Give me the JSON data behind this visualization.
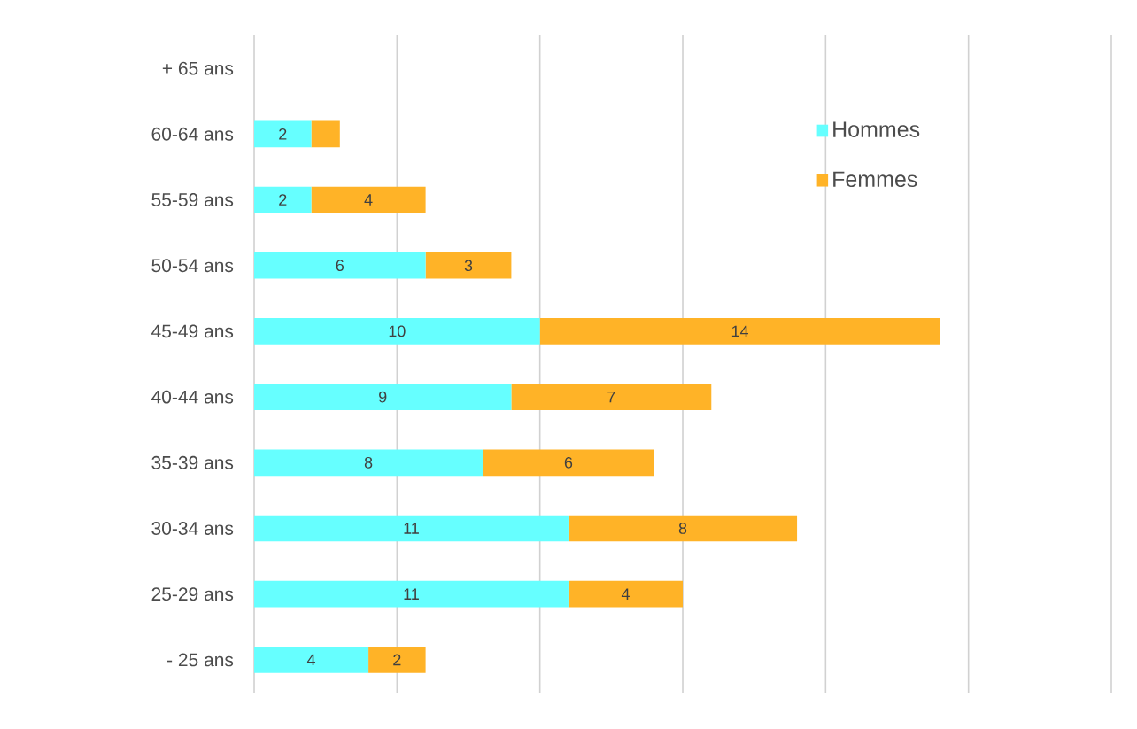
{
  "chart_data": {
    "type": "bar",
    "orientation": "horizontal",
    "stacked": true,
    "categories": [
      "+ 65 ans",
      "60-64 ans",
      "55-59 ans",
      "50-54 ans",
      "45-49 ans",
      "40-44 ans",
      "35-39 ans",
      "30-34 ans",
      "25-29 ans",
      "- 25 ans"
    ],
    "series": [
      {
        "name": "Hommes",
        "color": "#66ffff",
        "values": [
          null,
          2,
          2,
          6,
          10,
          9,
          8,
          11,
          11,
          4
        ],
        "value_labels": [
          null,
          "2",
          "2",
          "6",
          "10",
          "9",
          "8",
          "11",
          "11",
          "4"
        ]
      },
      {
        "name": "Femmes",
        "color": "#ffb327",
        "values": [
          null,
          1,
          4,
          3,
          14,
          7,
          6,
          8,
          4,
          2
        ],
        "value_labels": [
          null,
          null,
          "4",
          "3",
          "14",
          "7",
          "6",
          "8",
          "4",
          "2"
        ]
      }
    ],
    "xlim": [
      0,
      30
    ],
    "xticks": [
      {
        "value": 0,
        "label": null
      },
      {
        "value": 5,
        "label": null
      },
      {
        "value": 10,
        "label": null
      },
      {
        "value": 15,
        "label": null
      },
      {
        "value": 20,
        "label": null
      },
      {
        "value": 25,
        "label": null
      },
      {
        "value": 30,
        "label": null
      }
    ],
    "tick_labels": "y",
    "grid": "x",
    "legend": "top right"
  }
}
